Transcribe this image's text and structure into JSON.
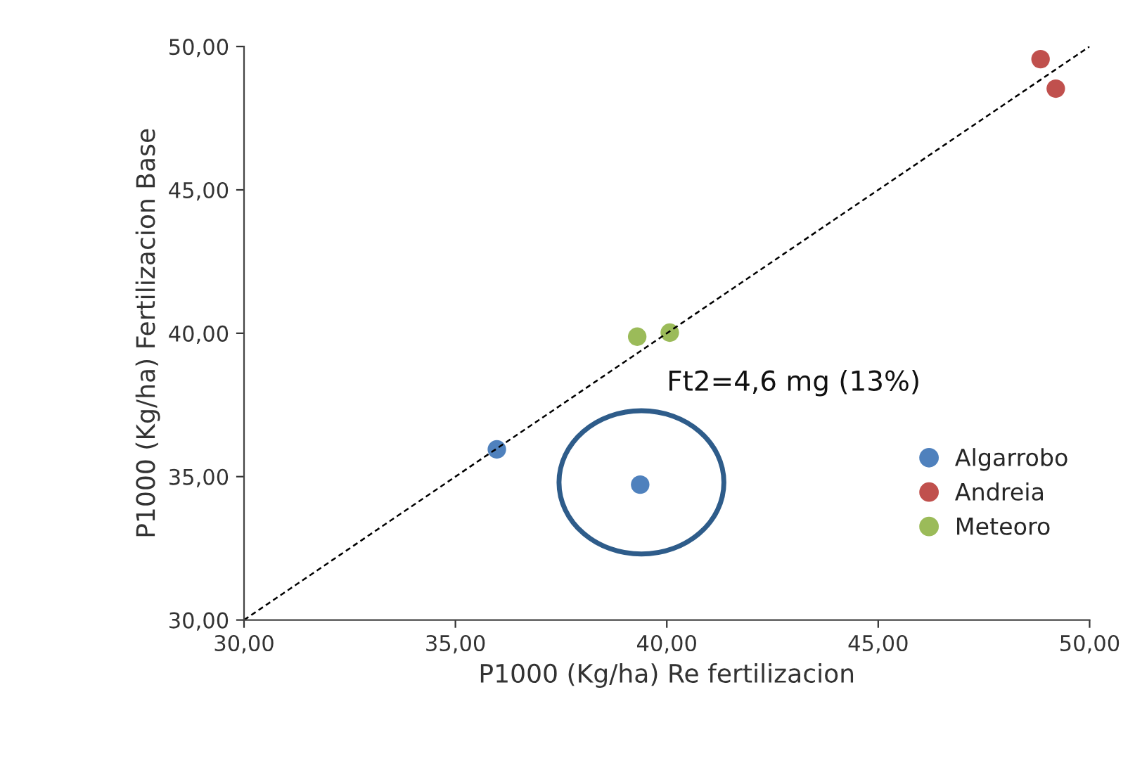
{
  "chart_data": {
    "type": "scatter",
    "xlabel": "P1000 (Kg/ha) Re fertilizacion",
    "ylabel": "P1000 (Kg/ha) Fertilizacion Base",
    "series": [
      {
        "name": "Algarrobo",
        "color": "#4f81bd",
        "x": [
          35.98,
          39.37
        ],
        "values": [
          35.95,
          34.72
        ]
      },
      {
        "name": "Andreia",
        "color": "#c0504d",
        "x": [
          48.84,
          49.2
        ],
        "values": [
          49.56,
          48.53
        ]
      },
      {
        "name": "Meteoro",
        "color": "#9bbb59",
        "x": [
          39.3,
          40.07
        ],
        "values": [
          39.88,
          40.02
        ]
      },
      {
        "type": "line",
        "color": "#000000",
        "line_style": "dashed",
        "marker": "none",
        "x": [
          30,
          50
        ],
        "values": [
          30,
          50
        ]
      }
    ],
    "xlim": [
      30,
      50
    ],
    "ylim": [
      30,
      50
    ],
    "xticks": [
      {
        "value": 30,
        "label": "30,00"
      },
      {
        "value": 35,
        "label": "35,00"
      },
      {
        "value": 40,
        "label": "40,00"
      },
      {
        "value": 45,
        "label": "45,00"
      },
      {
        "value": 50,
        "label": "50,00"
      }
    ],
    "yticks": [
      {
        "value": 30,
        "label": "30,00"
      },
      {
        "value": 35,
        "label": "35,00"
      },
      {
        "value": 40,
        "label": "40,00"
      },
      {
        "value": 45,
        "label": "45,00"
      },
      {
        "value": 50,
        "label": "50,00"
      }
    ],
    "annotations": [
      "Ft2=4,6 mg (13%)"
    ],
    "marker": "circle",
    "grid": false,
    "legend": "right"
  }
}
